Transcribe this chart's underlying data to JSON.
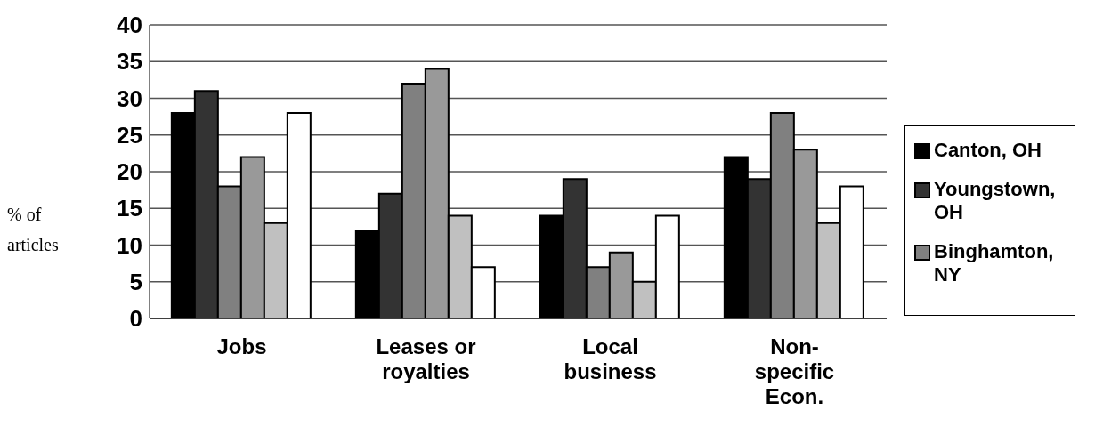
{
  "chart_data": {
    "type": "bar",
    "ylabel": "% of articles",
    "categories": [
      "Jobs",
      "Leases or royalties",
      "Local business",
      "Non-specific Econ."
    ],
    "series": [
      {
        "name": "Canton, OH",
        "color": "#000000",
        "values": [
          28,
          12,
          14,
          22
        ]
      },
      {
        "name": "Youngstown, OH",
        "color": "#333333",
        "values": [
          31,
          17,
          19,
          19
        ]
      },
      {
        "name": "Binghamton, NY",
        "color": "#808080",
        "values": [
          18,
          32,
          7,
          28
        ]
      },
      {
        "color": "#999999",
        "values": [
          22,
          34,
          9,
          23
        ]
      },
      {
        "color": "#c0c0c0",
        "values": [
          13,
          14,
          5,
          13
        ]
      },
      {
        "color": "#ffffff",
        "values": [
          28,
          7,
          14,
          18
        ]
      }
    ],
    "ylim": [
      0,
      40
    ],
    "yticks": [
      0,
      5,
      10,
      15,
      20,
      25,
      30,
      35,
      40
    ],
    "grid": "y",
    "legend": "right"
  }
}
